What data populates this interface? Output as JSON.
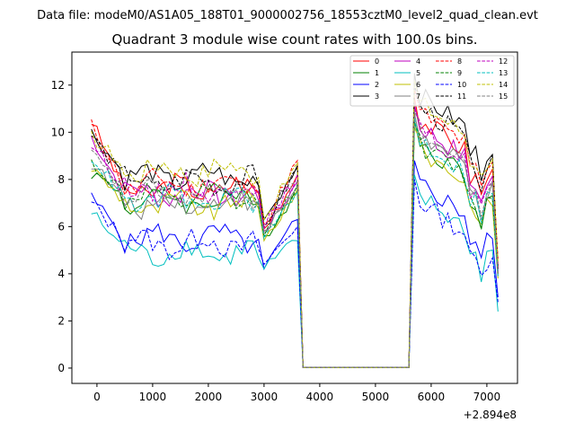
{
  "suptitle": "Data file: modeM0/AS1A05_188T01_9000002756_18553cztM0_level2_quad_clean.evt",
  "chart_data": {
    "type": "line",
    "title": "Quadrant 3 module wise count rates with 100.0s bins.",
    "xlabel": "",
    "ylabel": "",
    "x_offset_label": "+2.894e8",
    "xlim": [
      -450,
      7550
    ],
    "ylim": [
      -0.65,
      13.4
    ],
    "xticks": [
      0,
      1000,
      2000,
      3000,
      4000,
      5000,
      6000,
      7000
    ],
    "xtick_labels": [
      "0",
      "1000",
      "2000",
      "3000",
      "4000",
      "5000",
      "6000",
      "7000"
    ],
    "yticks": [
      0,
      2,
      4,
      6,
      8,
      10,
      12
    ],
    "ytick_labels": [
      "0",
      "2",
      "4",
      "6",
      "8",
      "10",
      "12"
    ],
    "grid": false,
    "legend_position": "top-right",
    "legend_columns": 4,
    "gap": {
      "drop_start": 3600,
      "low_start": 3700,
      "low_end": 5600,
      "rise_end": 5700,
      "low_value": 0.02
    },
    "series": [
      {
        "name": "0",
        "color": "#ff0000",
        "dash": "solid",
        "level": 7.6,
        "start": 10.5,
        "mid_end": 8.2,
        "dip": 5.9,
        "post_peak": 11.5,
        "end": 4.3
      },
      {
        "name": "1",
        "color": "#008000",
        "dash": "solid",
        "level": 7.1,
        "start": 8.3,
        "mid_end": 7.5,
        "dip": 5.6,
        "post_peak": 10.5,
        "end": 4.0
      },
      {
        "name": "2",
        "color": "#0000ff",
        "dash": "solid",
        "level": 5.5,
        "start": 7.2,
        "mid_end": 6.3,
        "dip": 4.2,
        "post_peak": 8.8,
        "end": 3.0
      },
      {
        "name": "3",
        "color": "#000000",
        "dash": "solid",
        "level": 8.1,
        "start": 10.0,
        "mid_end": 8.6,
        "dip": 6.3,
        "post_peak": 12.5,
        "end": 4.2
      },
      {
        "name": "4",
        "color": "#bf00bf",
        "dash": "solid",
        "level": 7.4,
        "start": 9.8,
        "mid_end": 7.9,
        "dip": 5.8,
        "post_peak": 11.2,
        "end": 4.1
      },
      {
        "name": "5",
        "color": "#00bfbf",
        "dash": "solid",
        "level": 4.9,
        "start": 6.6,
        "mid_end": 5.4,
        "dip": 4.2,
        "post_peak": 8.2,
        "end": 2.4
      },
      {
        "name": "6",
        "color": "#bfbf00",
        "dash": "solid",
        "level": 6.9,
        "start": 8.5,
        "mid_end": 7.6,
        "dip": 5.4,
        "post_peak": 10.2,
        "end": 3.8
      },
      {
        "name": "7",
        "color": "#808080",
        "dash": "solid",
        "level": 7.0,
        "start": 8.7,
        "mid_end": 7.7,
        "dip": 5.7,
        "post_peak": 10.8,
        "end": 3.9
      },
      {
        "name": "8",
        "color": "#ff0000",
        "dash": "dashed",
        "level": 7.8,
        "start": 10.3,
        "mid_end": 8.8,
        "dip": 6.1,
        "post_peak": 11.8,
        "end": 4.6
      },
      {
        "name": "9",
        "color": "#008000",
        "dash": "dashed",
        "level": 7.2,
        "start": 8.7,
        "mid_end": 7.8,
        "dip": 5.6,
        "post_peak": 10.4,
        "end": 4.0
      },
      {
        "name": "10",
        "color": "#0000ff",
        "dash": "dashed",
        "level": 5.3,
        "start": 7.0,
        "mid_end": 6.0,
        "dip": 4.4,
        "post_peak": 8.0,
        "end": 2.8
      },
      {
        "name": "11",
        "color": "#000000",
        "dash": "dashed",
        "level": 7.9,
        "start": 9.9,
        "mid_end": 8.5,
        "dip": 6.0,
        "post_peak": 12.0,
        "end": 4.2
      },
      {
        "name": "12",
        "color": "#bf00bf",
        "dash": "dashed",
        "level": 7.6,
        "start": 9.5,
        "mid_end": 8.2,
        "dip": 5.9,
        "post_peak": 11.0,
        "end": 4.1
      },
      {
        "name": "13",
        "color": "#00bfbf",
        "dash": "dashed",
        "level": 7.1,
        "start": 9.0,
        "mid_end": 7.5,
        "dip": 5.5,
        "post_peak": 10.6,
        "end": 3.9
      },
      {
        "name": "14",
        "color": "#bfbf00",
        "dash": "dashed",
        "level": 8.4,
        "start": 9.8,
        "mid_end": 8.7,
        "dip": 6.3,
        "post_peak": 12.2,
        "end": 4.5
      },
      {
        "name": "15",
        "color": "#808080",
        "dash": "dashed",
        "level": 7.3,
        "start": 9.1,
        "mid_end": 7.9,
        "dip": 5.8,
        "post_peak": 10.9,
        "end": 4.0
      }
    ]
  }
}
